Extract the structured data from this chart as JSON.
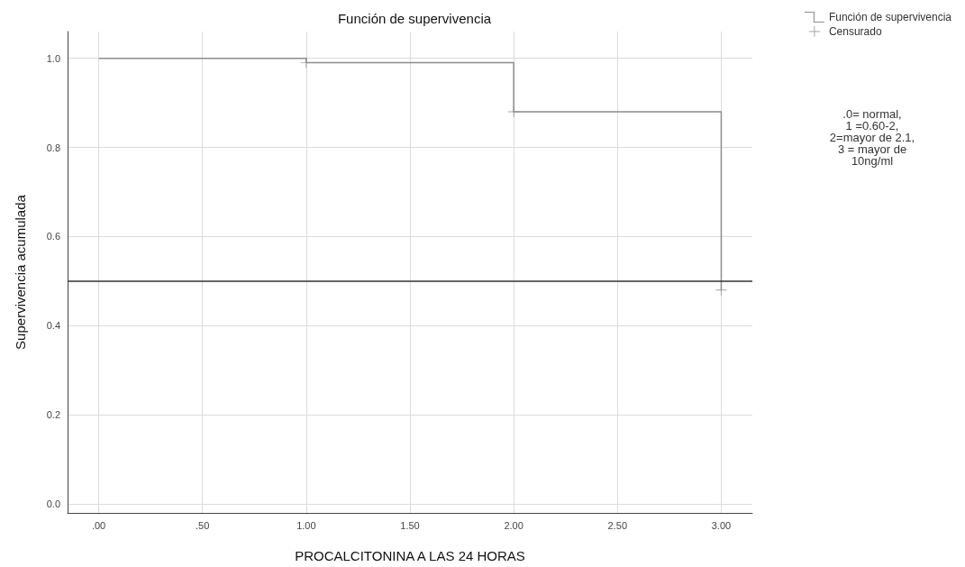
{
  "chart_data": {
    "type": "step",
    "title": "Función de supervivencia",
    "xlabel": "PROCALCITONINA A LAS 24 HORAS",
    "ylabel": "Supervivencia acumulada",
    "annotations": [
      ".0= normal,\n1 =0.60-2,\n2=mayor de 2.1,\n3 = mayor de\n10ng/ml"
    ],
    "x": [
      0,
      1,
      2,
      3
    ],
    "series": [
      {
        "name": "Función de supervivencia",
        "color": "#8c8c8c",
        "marker": "none",
        "values": [
          1,
          0.99,
          0.88,
          0.48
        ]
      },
      {
        "name": "Censurado",
        "type": "scatter",
        "color": "#8c8c8c",
        "marker": "cross",
        "x": [
          1,
          2,
          3
        ],
        "values": [
          0.99,
          0.88,
          0.48
        ]
      }
    ],
    "xlim": [
      -0.15,
      3.15
    ],
    "ylim": [
      -0.02,
      1.06
    ],
    "xticks": [
      {
        "value": 0,
        "label": ".00"
      },
      {
        "value": 0.5,
        "label": ".50"
      },
      {
        "value": 1,
        "label": "1.00"
      },
      {
        "value": 1.5,
        "label": "1.50"
      },
      {
        "value": 2,
        "label": "2.00"
      },
      {
        "value": 2.5,
        "label": "2.50"
      },
      {
        "value": 3,
        "label": "3.00"
      }
    ],
    "yticks": [
      {
        "value": 0,
        "label": "0.0"
      },
      {
        "value": 0.2,
        "label": "0.2"
      },
      {
        "value": 0.4,
        "label": "0.4"
      },
      {
        "value": 0.6,
        "label": "0.6"
      },
      {
        "value": 0.8,
        "label": "0.8"
      },
      {
        "value": 1,
        "label": "1.0"
      }
    ],
    "ref_lines": [
      {
        "axis": "y",
        "value": 0.5,
        "color": "#333333"
      }
    ],
    "grid": true,
    "legend": "top right"
  }
}
